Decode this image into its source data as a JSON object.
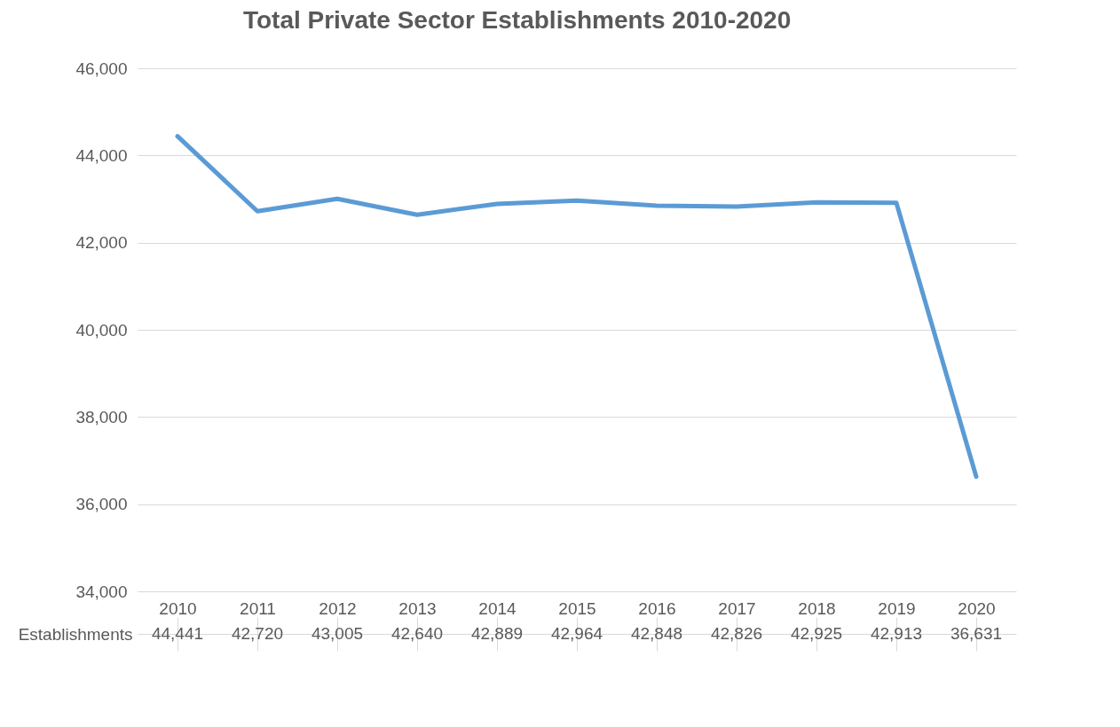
{
  "chart_data": {
    "type": "line",
    "title": "Total Private Sector Establishments 2010-2020",
    "categories": [
      "2010",
      "2011",
      "2012",
      "2013",
      "2014",
      "2015",
      "2016",
      "2017",
      "2018",
      "2019",
      "2020"
    ],
    "series": [
      {
        "name": "Establishments",
        "color": "#5b9bd5",
        "values": [
          44441,
          42720,
          43005,
          42640,
          42889,
          42964,
          42848,
          42826,
          42925,
          42913,
          36631
        ],
        "value_labels": [
          "44,441",
          "42,720",
          "43,005",
          "42,640",
          "42,889",
          "42,964",
          "42,848",
          "42,826",
          "42,925",
          "42,913",
          "36,631"
        ]
      }
    ],
    "ylim": [
      34000,
      46000
    ],
    "yticks": [
      {
        "value": 34000,
        "label": "34,000"
      },
      {
        "value": 36000,
        "label": "36,000"
      },
      {
        "value": 38000,
        "label": "38,000"
      },
      {
        "value": 40000,
        "label": "40,000"
      },
      {
        "value": 42000,
        "label": "42,000"
      },
      {
        "value": 44000,
        "label": "44,000"
      },
      {
        "value": 46000,
        "label": "46,000"
      }
    ],
    "grid": "y"
  }
}
